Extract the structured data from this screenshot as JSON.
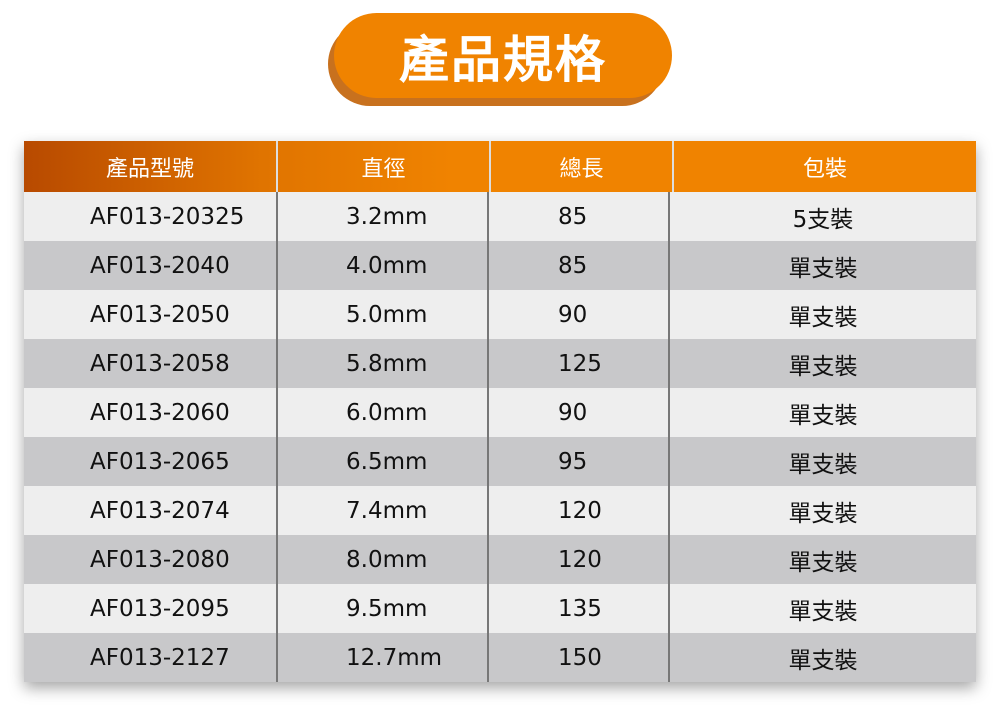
{
  "title": "產品規格",
  "colors": {
    "accent": "#f08300",
    "row_light": "#eeeeee",
    "row_dark": "#c8c8ca"
  },
  "headers": [
    "產品型號",
    "直徑",
    "總長",
    "包裝"
  ],
  "rows": [
    [
      "AF013-20325",
      "3.2mm",
      "85",
      "5支裝"
    ],
    [
      "AF013-2040",
      "4.0mm",
      "85",
      "單支裝"
    ],
    [
      "AF013-2050",
      "5.0mm",
      "90",
      "單支裝"
    ],
    [
      "AF013-2058",
      "5.8mm",
      "125",
      "單支裝"
    ],
    [
      "AF013-2060",
      "6.0mm",
      "90",
      "單支裝"
    ],
    [
      "AF013-2065",
      "6.5mm",
      "95",
      "單支裝"
    ],
    [
      "AF013-2074",
      "7.4mm",
      "120",
      "單支裝"
    ],
    [
      "AF013-2080",
      "8.0mm",
      "120",
      "單支裝"
    ],
    [
      "AF013-2095",
      "9.5mm",
      "135",
      "單支裝"
    ],
    [
      "AF013-2127",
      "12.7mm",
      "150",
      "單支裝"
    ]
  ]
}
